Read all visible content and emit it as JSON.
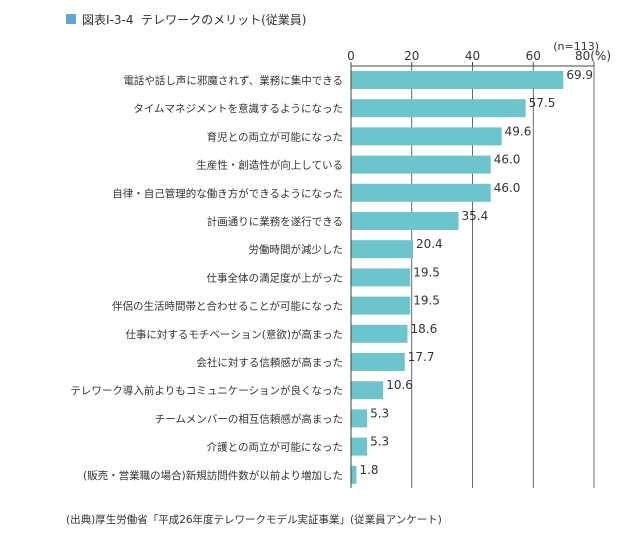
{
  "header": {
    "figure_number": "図表Ⅰ-3-4",
    "title": "テレワークのメリット(従業員)",
    "accent_color": "#5fa5d9"
  },
  "chart_data": {
    "type": "bar",
    "orientation": "horizontal",
    "note": "(n=113)",
    "unit_label": "80(%)",
    "xlim": [
      0,
      80
    ],
    "ticks": [
      0,
      20,
      40,
      60,
      80
    ],
    "bar_color": "#6cc4cc",
    "categories": [
      "電話や話し声に邪魔されず、業務に集中できる",
      "タイムマネジメントを意識するようになった",
      "育児との両立が可能になった",
      "生産性・創造性が向上している",
      "自律・自己管理的な働き方ができるようになった",
      "計画通りに業務を遂行できる",
      "労働時間が減少した",
      "仕事全体の満足度が上がった",
      "伴侶の生活時間帯と合わせることが可能になった",
      "仕事に対するモチベーション(意欲)が高まった",
      "会社に対する信頼感が高まった",
      "テレワーク導入前よりもコミュニケーションが良くなった",
      "チームメンバーの相互信頼感が高まった",
      "介護との両立が可能になった",
      "(販売・営業職の場合)新規訪問件数が以前より増加した"
    ],
    "values": [
      69.9,
      57.5,
      49.6,
      46.0,
      46.0,
      35.4,
      20.4,
      19.5,
      19.5,
      18.6,
      17.7,
      10.6,
      5.3,
      5.3,
      1.8
    ],
    "value_labels": [
      "69.9",
      "57.5",
      "49.6",
      "46.0",
      "46.0",
      "35.4",
      "20.4",
      "19.5",
      "19.5",
      "18.6",
      "17.7",
      "10.6",
      "5.3",
      "5.3",
      "1.8"
    ]
  },
  "source": "(出典)厚生労働省「平成26年度テレワークモデル実証事業」(従業員アンケート)"
}
